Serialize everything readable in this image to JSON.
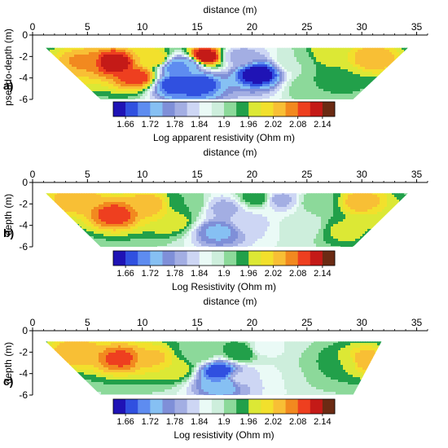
{
  "colors": {
    "scale": [
      "#1f13b5",
      "#3050e0",
      "#5e8cf0",
      "#86c0f3",
      "#7f8fd8",
      "#a3aee3",
      "#cdd6f4",
      "#eafaf6",
      "#cdeedc",
      "#8cd99a",
      "#22a04a",
      "#dce835",
      "#f2e02c",
      "#f8bf35",
      "#f2891f",
      "#ee3f1f",
      "#c41a17",
      "#6b2a13"
    ],
    "contour_line": "#9a9a9a",
    "axis": "#000000"
  },
  "chart_data": [
    {
      "type": "heatmap",
      "panel_label": "a)",
      "title": "distance (m)",
      "xlabel": "distance (m)",
      "ylabel": "pseudo-depth (m)",
      "xlim": [
        0,
        36
      ],
      "ylim": [
        -6,
        0
      ],
      "xticks": [
        "0",
        "5",
        "10",
        "15",
        "20",
        "25",
        "30",
        "35"
      ],
      "yticks": [
        "0",
        "-2",
        "-4",
        "-6"
      ],
      "colorbar": {
        "label": "Log apparent resistivity (Ohm m)",
        "tick_labels": [
          "1.66",
          "1.72",
          "1.78",
          "1.84",
          "1.9",
          "1.96",
          "2.02",
          "2.08",
          "2.14"
        ],
        "levels": [
          1.63,
          1.66,
          1.69,
          1.72,
          1.75,
          1.78,
          1.81,
          1.84,
          1.87,
          1.9,
          1.93,
          1.96,
          1.99,
          2.02,
          2.05,
          2.08,
          2.11,
          2.14,
          2.17
        ]
      },
      "section_extent": {
        "top": [
          [
            1.2,
            -1.2
          ],
          [
            34.2,
            -1.2
          ]
        ],
        "bottom": [
          [
            6.2,
            -6
          ],
          [
            29.2,
            -6
          ]
        ]
      },
      "background_value": 1.88,
      "features": [
        {
          "x": 4.5,
          "y": -2.6,
          "value": 2.06
        },
        {
          "x": 7.5,
          "y": -2.6,
          "value": 2.14
        },
        {
          "x": 9.5,
          "y": -3.9,
          "value": 2.1
        },
        {
          "x": 3.0,
          "y": -3.6,
          "value": 2.02
        },
        {
          "x": 11.0,
          "y": -2.2,
          "value": 2.02
        },
        {
          "x": 13.2,
          "y": -3.0,
          "value": 1.7
        },
        {
          "x": 13.0,
          "y": -4.6,
          "value": 1.66
        },
        {
          "x": 15.0,
          "y": -4.6,
          "value": 1.66
        },
        {
          "x": 15.7,
          "y": -2.0,
          "value": 2.14
        },
        {
          "x": 14.0,
          "y": -2.8,
          "value": 1.72
        },
        {
          "x": 20.5,
          "y": -3.6,
          "value": 1.63
        },
        {
          "x": 18.8,
          "y": -2.0,
          "value": 1.8
        },
        {
          "x": 24.0,
          "y": -2.4,
          "value": 1.9
        },
        {
          "x": 27.0,
          "y": -1.8,
          "value": 1.99
        },
        {
          "x": 31.0,
          "y": -2.2,
          "value": 2.05
        },
        {
          "x": 28.0,
          "y": -4.0,
          "value": 1.96
        },
        {
          "x": 25.5,
          "y": -4.8,
          "value": 1.93
        }
      ]
    },
    {
      "type": "heatmap",
      "panel_label": "b)",
      "title": "distance (m)",
      "xlabel": "distance (m)",
      "ylabel": "depth (m)",
      "xlim": [
        0,
        36
      ],
      "ylim": [
        -6,
        0
      ],
      "xticks": [
        "0",
        "5",
        "10",
        "15",
        "20",
        "25",
        "30",
        "35"
      ],
      "yticks": [
        "0",
        "-2",
        "-4",
        "-6"
      ],
      "colorbar": {
        "label": "Log Resistivity (Ohm m)",
        "tick_labels": [
          "1.66",
          "1.72",
          "1.78",
          "1.84",
          "1.9",
          "1.96",
          "2.02",
          "2.08",
          "2.14"
        ],
        "levels": [
          1.63,
          1.66,
          1.69,
          1.72,
          1.75,
          1.78,
          1.81,
          1.84,
          1.87,
          1.9,
          1.93,
          1.96,
          1.99,
          2.02,
          2.05,
          2.08,
          2.11,
          2.14,
          2.17
        ]
      },
      "section_extent": {
        "top": [
          [
            1.2,
            -1.0
          ],
          [
            34.2,
            -1.0
          ]
        ],
        "bottom": [
          [
            6.2,
            -6
          ],
          [
            29.2,
            -6
          ]
        ]
      },
      "background_value": 1.88,
      "features": [
        {
          "x": 4.0,
          "y": -1.6,
          "value": 2.05
        },
        {
          "x": 7.5,
          "y": -3.0,
          "value": 2.1
        },
        {
          "x": 10.5,
          "y": -2.2,
          "value": 2.05
        },
        {
          "x": 12.5,
          "y": -3.5,
          "value": 1.99
        },
        {
          "x": 14.0,
          "y": -2.0,
          "value": 1.93
        },
        {
          "x": 17.0,
          "y": -4.6,
          "value": 1.74
        },
        {
          "x": 17.5,
          "y": -2.4,
          "value": 1.8
        },
        {
          "x": 19.5,
          "y": -3.8,
          "value": 1.82
        },
        {
          "x": 20.5,
          "y": -1.4,
          "value": 1.95
        },
        {
          "x": 22.5,
          "y": -1.6,
          "value": 1.8
        },
        {
          "x": 24.5,
          "y": -4.0,
          "value": 1.88
        },
        {
          "x": 26.0,
          "y": -1.8,
          "value": 1.92
        },
        {
          "x": 28.5,
          "y": -4.5,
          "value": 1.97
        },
        {
          "x": 30.0,
          "y": -1.8,
          "value": 2.04
        },
        {
          "x": 32.5,
          "y": -3.2,
          "value": 1.99
        }
      ]
    },
    {
      "type": "heatmap",
      "panel_label": "c)",
      "title": "distance (m)",
      "xlabel": "distance (m)",
      "ylabel": "depth (m)",
      "xlim": [
        0,
        36
      ],
      "ylim": [
        -6,
        0
      ],
      "xticks": [
        "0",
        "5",
        "10",
        "15",
        "20",
        "25",
        "30",
        "35"
      ],
      "yticks": [
        "0",
        "-2",
        "-4",
        "-6"
      ],
      "colorbar": {
        "label": "Log resistivity (Ohm m)",
        "tick_labels": [
          "1.66",
          "1.72",
          "1.78",
          "1.84",
          "1.9",
          "1.96",
          "2.02",
          "2.08",
          "2.14"
        ],
        "levels": [
          1.63,
          1.66,
          1.69,
          1.72,
          1.75,
          1.78,
          1.81,
          1.84,
          1.87,
          1.9,
          1.93,
          1.96,
          1.99,
          2.02,
          2.05,
          2.08,
          2.11,
          2.14,
          2.17
        ]
      },
      "section_extent": {
        "top": [
          [
            1.2,
            -1.0
          ],
          [
            31.8,
            -1.0
          ]
        ],
        "bottom": [
          [
            6.2,
            -6
          ],
          [
            29.2,
            -6
          ]
        ]
      },
      "background_value": 1.88,
      "features": [
        {
          "x": 4.0,
          "y": -2.0,
          "value": 2.05
        },
        {
          "x": 8.0,
          "y": -2.6,
          "value": 2.09
        },
        {
          "x": 11.0,
          "y": -2.6,
          "value": 2.03
        },
        {
          "x": 13.0,
          "y": -3.5,
          "value": 1.99
        },
        {
          "x": 15.0,
          "y": -2.2,
          "value": 1.92
        },
        {
          "x": 17.0,
          "y": -3.8,
          "value": 1.66
        },
        {
          "x": 17.2,
          "y": -5.0,
          "value": 1.72
        },
        {
          "x": 19.0,
          "y": -2.0,
          "value": 1.96
        },
        {
          "x": 19.0,
          "y": -4.4,
          "value": 1.82
        },
        {
          "x": 21.0,
          "y": -1.6,
          "value": 1.86
        },
        {
          "x": 22.5,
          "y": -4.0,
          "value": 1.87
        },
        {
          "x": 26.5,
          "y": -3.5,
          "value": 1.93
        },
        {
          "x": 28.5,
          "y": -3.0,
          "value": 1.96
        },
        {
          "x": 30.2,
          "y": -2.8,
          "value": 2.05
        }
      ]
    }
  ]
}
